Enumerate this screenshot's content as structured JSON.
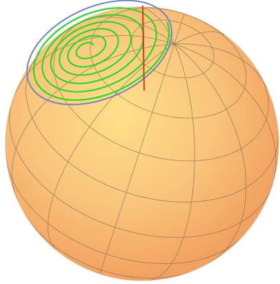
{
  "scene": {
    "sphere_color_center": "#FFE08A",
    "sphere_color_edge": "#F2A15F",
    "grid_color": "#7A6A55",
    "spiral_color": "#22DD22",
    "boundary_circle_color": "#6A86C8",
    "axis_line_color": "#E0301E",
    "latitude_lines": 9,
    "longitude_lines": 12,
    "spiral_turns": 6
  }
}
